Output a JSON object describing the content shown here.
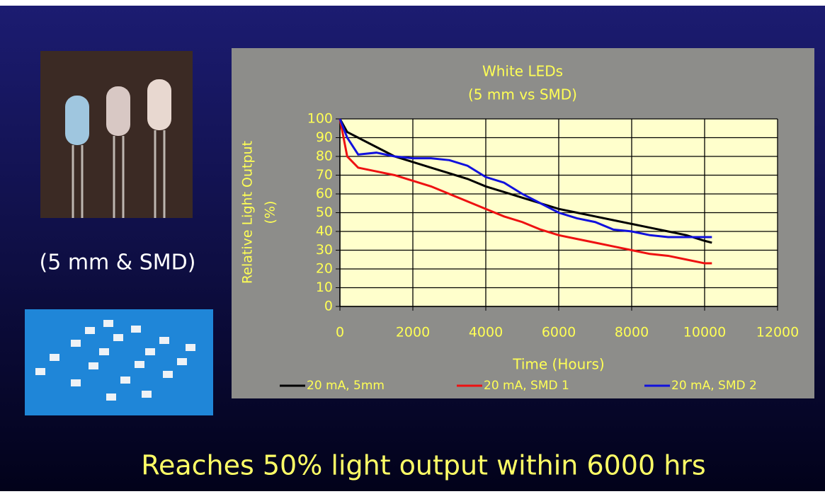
{
  "caption": "(5 mm & SMD)",
  "footer": "Reaches 50% light output within 6000 hrs",
  "chart_data": {
    "type": "line",
    "title": "White  LEDs",
    "subtitle": "(5 mm vs SMD)",
    "xlabel": "Time (Hours)",
    "ylabel": [
      "Relative Light Output",
      "(%)"
    ],
    "x": [
      0,
      200,
      500,
      1000,
      1500,
      2000,
      2500,
      3000,
      3500,
      4000,
      4500,
      5000,
      5500,
      6000,
      6500,
      7000,
      7500,
      8000,
      8500,
      9000,
      9500,
      10000,
      10200
    ],
    "series": [
      {
        "name": "20 mA, 5mm",
        "color": "#000000",
        "values": [
          100,
          93,
          90,
          85,
          80,
          77,
          74,
          71,
          68,
          64,
          61,
          58,
          55,
          52,
          50,
          48,
          46,
          44,
          42,
          40,
          38,
          35,
          34
        ]
      },
      {
        "name": "20 mA, SMD 1",
        "color": "#ee1111",
        "values": [
          100,
          80,
          74,
          72,
          70,
          67,
          64,
          60,
          56,
          52,
          48,
          45,
          41,
          38,
          36,
          34,
          32,
          30,
          28,
          27,
          25,
          23,
          23
        ]
      },
      {
        "name": "20 mA, SMD 2",
        "color": "#1111dd",
        "values": [
          100,
          90,
          81,
          82,
          80,
          79,
          79,
          78,
          75,
          69,
          66,
          60,
          55,
          50,
          47,
          45,
          41,
          40,
          38,
          37,
          37,
          37,
          37
        ]
      }
    ],
    "xlim": [
      0,
      12000
    ],
    "xticks": [
      0,
      2000,
      4000,
      6000,
      8000,
      10000,
      12000
    ],
    "ylim": [
      0,
      100
    ],
    "yticks": [
      0,
      10,
      20,
      30,
      40,
      50,
      60,
      70,
      80,
      90,
      100
    ],
    "grid": true,
    "legend": "bottom"
  }
}
